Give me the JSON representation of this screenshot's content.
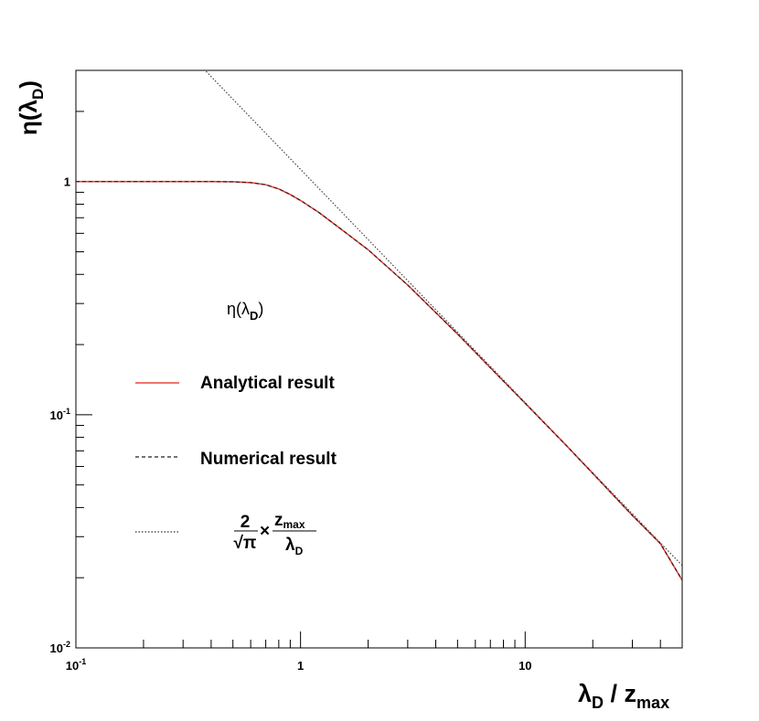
{
  "chart_data": {
    "type": "line",
    "xscale": "log",
    "yscale": "log",
    "xlim": [
      0.1,
      50
    ],
    "ylim": [
      0.01,
      3.0
    ],
    "x_tick_labels": [
      {
        "value": 0.1,
        "base": "10",
        "exp": "-1"
      },
      {
        "value": 1,
        "text": "1"
      },
      {
        "value": 10,
        "text": "10"
      }
    ],
    "y_tick_labels": [
      {
        "value": 0.01,
        "base": "10",
        "exp": "-2"
      },
      {
        "value": 0.1,
        "base": "10",
        "exp": "-1"
      },
      {
        "value": 1,
        "text": "1"
      }
    ],
    "ylabel": {
      "main": "η(λ",
      "sub": "D",
      "close": ")"
    },
    "xlabel": {
      "main": "λ",
      "sub": "D",
      "mid": " / z",
      "sub2": "max"
    },
    "legend_header": {
      "main": "η(λ",
      "sub": "D",
      "close": ")"
    },
    "series": [
      {
        "name": "Analytical result",
        "style": "solid",
        "color": "#e8453c",
        "x": [
          0.1,
          0.2,
          0.3,
          0.4,
          0.5,
          0.6,
          0.7,
          0.8,
          0.9,
          1.0,
          1.2,
          1.5,
          2,
          3,
          5,
          7,
          10,
          15,
          20,
          30,
          40,
          50
        ],
        "y": [
          1.0,
          1.0,
          1.0,
          1.0,
          0.998,
          0.99,
          0.97,
          0.93,
          0.88,
          0.83,
          0.74,
          0.63,
          0.51,
          0.36,
          0.222,
          0.159,
          0.112,
          0.075,
          0.056,
          0.037,
          0.028,
          0.0195
        ]
      },
      {
        "name": "Numerical result",
        "style": "dashed",
        "color": "#222222",
        "x": [
          0.1,
          0.2,
          0.3,
          0.4,
          0.5,
          0.6,
          0.7,
          0.8,
          0.9,
          1.0,
          1.2,
          1.5,
          2,
          3,
          5,
          7,
          10,
          15,
          20,
          30,
          40,
          50
        ],
        "y": [
          1.0,
          1.0,
          1.0,
          1.0,
          0.998,
          0.99,
          0.97,
          0.93,
          0.88,
          0.83,
          0.74,
          0.63,
          0.51,
          0.36,
          0.222,
          0.159,
          0.112,
          0.075,
          0.056,
          0.037,
          0.028,
          0.0195
        ]
      },
      {
        "name": "2/√π × z_max/λ_D",
        "style": "dotted",
        "color": "#333333",
        "formula": {
          "num": "2",
          "den": "√π",
          "times": "×",
          "num2_main": "z",
          "num2_sub": "max",
          "den2_main": "λ",
          "den2_sub": "D"
        },
        "x": [
          0.38,
          50
        ],
        "y": [
          2.969,
          0.02257
        ]
      }
    ],
    "grid": false,
    "legend_position": "middle-left"
  }
}
